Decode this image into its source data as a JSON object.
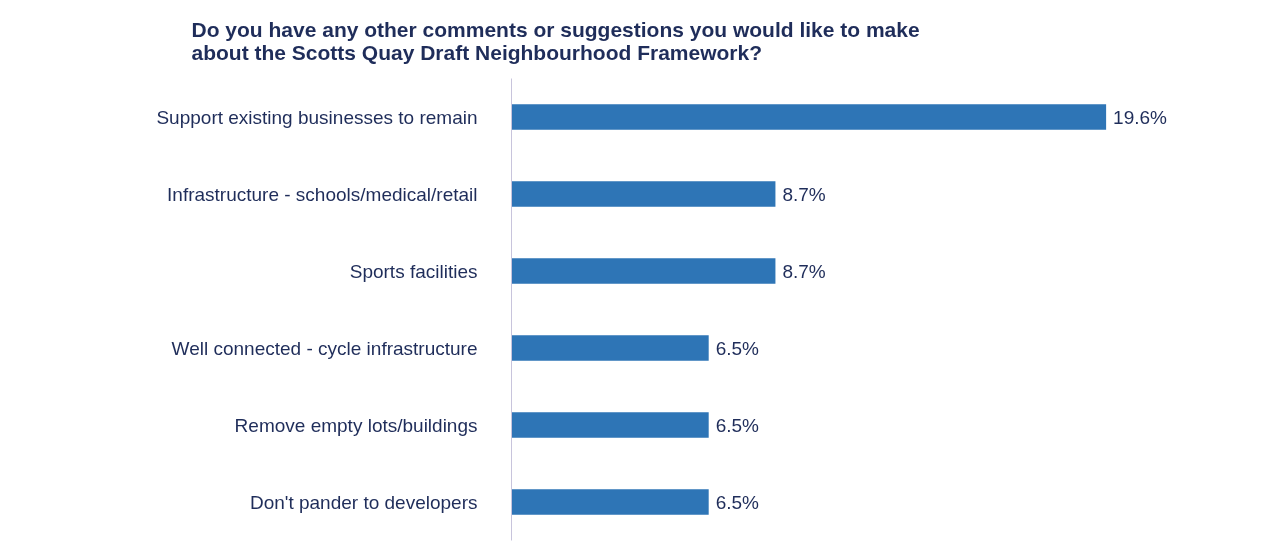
{
  "chart_data": {
    "type": "bar",
    "orientation": "horizontal",
    "title": "Do you have any other comments or suggestions you would like to make\nabout the Scotts Quay Draft Neighbourhood Framework?",
    "categories": [
      "Support existing businesses to remain",
      "Infrastructure - schools/medical/retail",
      "Sports facilities",
      "Well connected - cycle infrastructure",
      "Remove empty lots/buildings",
      "Don't pander to developers"
    ],
    "values": [
      19.6,
      8.7,
      8.7,
      6.5,
      6.5,
      6.5
    ],
    "value_labels": [
      "19.6%",
      "8.7%",
      "8.7%",
      "6.5%",
      "6.5%",
      "6.5%"
    ],
    "color": "#2e75b6",
    "grid": false,
    "legend": false
  }
}
